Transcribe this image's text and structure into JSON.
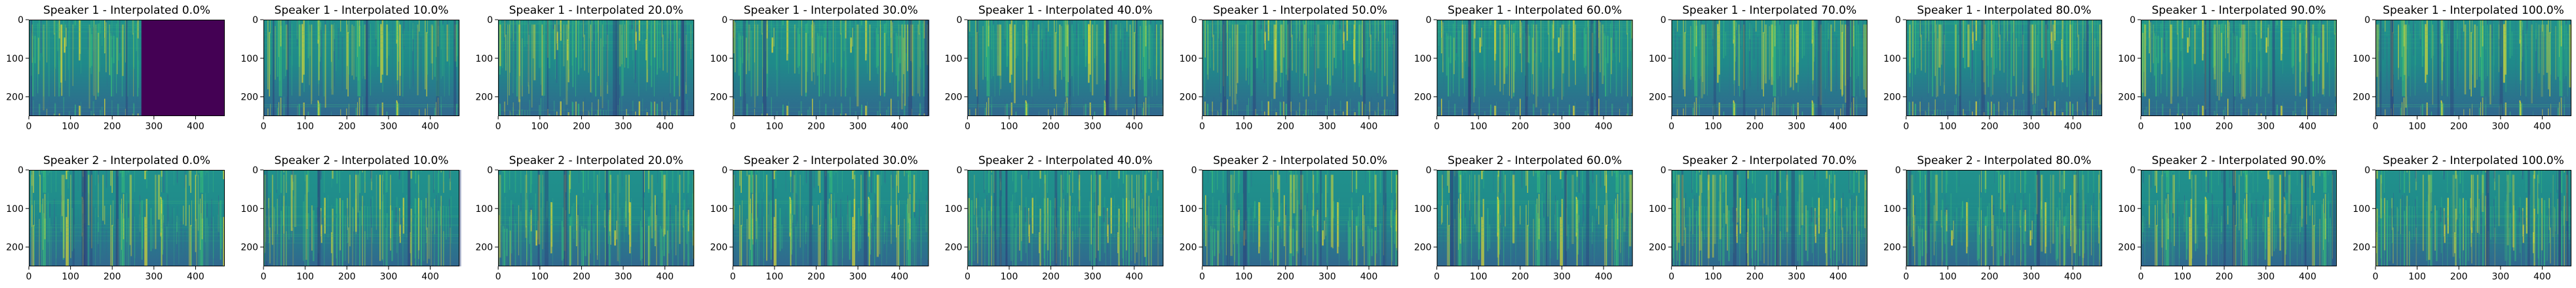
{
  "chart_data": {
    "type": "heatmap",
    "colormap": "viridis",
    "rows": [
      {
        "speaker": "Speaker 1",
        "panels": [
          {
            "title": "Speaker 1 - Interpolated 0.0%",
            "interpolation": 0.0,
            "silent_region_x": [
              270,
              470
            ]
          },
          {
            "title": "Speaker 1 - Interpolated 10.0%",
            "interpolation": 10.0
          },
          {
            "title": "Speaker 1 - Interpolated 20.0%",
            "interpolation": 20.0
          },
          {
            "title": "Speaker 1 - Interpolated 30.0%",
            "interpolation": 30.0
          },
          {
            "title": "Speaker 1 - Interpolated 40.0%",
            "interpolation": 40.0
          },
          {
            "title": "Speaker 1 - Interpolated 50.0%",
            "interpolation": 50.0
          },
          {
            "title": "Speaker 1 - Interpolated 60.0%",
            "interpolation": 60.0
          },
          {
            "title": "Speaker 1 - Interpolated 70.0%",
            "interpolation": 70.0
          },
          {
            "title": "Speaker 1 - Interpolated 80.0%",
            "interpolation": 80.0
          },
          {
            "title": "Speaker 1 - Interpolated 90.0%",
            "interpolation": 90.0
          },
          {
            "title": "Speaker 1 - Interpolated 100.0%",
            "interpolation": 100.0
          }
        ]
      },
      {
        "speaker": "Speaker 2",
        "panels": [
          {
            "title": "Speaker 2 - Interpolated 0.0%",
            "interpolation": 0.0
          },
          {
            "title": "Speaker 2 - Interpolated 10.0%",
            "interpolation": 10.0
          },
          {
            "title": "Speaker 2 - Interpolated 20.0%",
            "interpolation": 20.0
          },
          {
            "title": "Speaker 2 - Interpolated 30.0%",
            "interpolation": 30.0
          },
          {
            "title": "Speaker 2 - Interpolated 40.0%",
            "interpolation": 40.0
          },
          {
            "title": "Speaker 2 - Interpolated 50.0%",
            "interpolation": 50.0
          },
          {
            "title": "Speaker 2 - Interpolated 60.0%",
            "interpolation": 60.0
          },
          {
            "title": "Speaker 2 - Interpolated 70.0%",
            "interpolation": 70.0
          },
          {
            "title": "Speaker 2 - Interpolated 80.0%",
            "interpolation": 80.0
          },
          {
            "title": "Speaker 2 - Interpolated 90.0%",
            "interpolation": 90.0
          },
          {
            "title": "Speaker 2 - Interpolated 100.0%",
            "interpolation": 100.0
          }
        ]
      }
    ],
    "xlim": [
      0,
      470
    ],
    "ylim": [
      250,
      0
    ],
    "x_ticks": [
      "0",
      "100",
      "200",
      "300",
      "400"
    ],
    "y_ticks": [
      "0",
      "100",
      "200"
    ],
    "xlabel": "",
    "ylabel": "",
    "colors": {
      "low": "#440154",
      "mid_low": "#31688e",
      "mid": "#21918c",
      "mid_high": "#35b779",
      "high": "#fde725"
    }
  }
}
